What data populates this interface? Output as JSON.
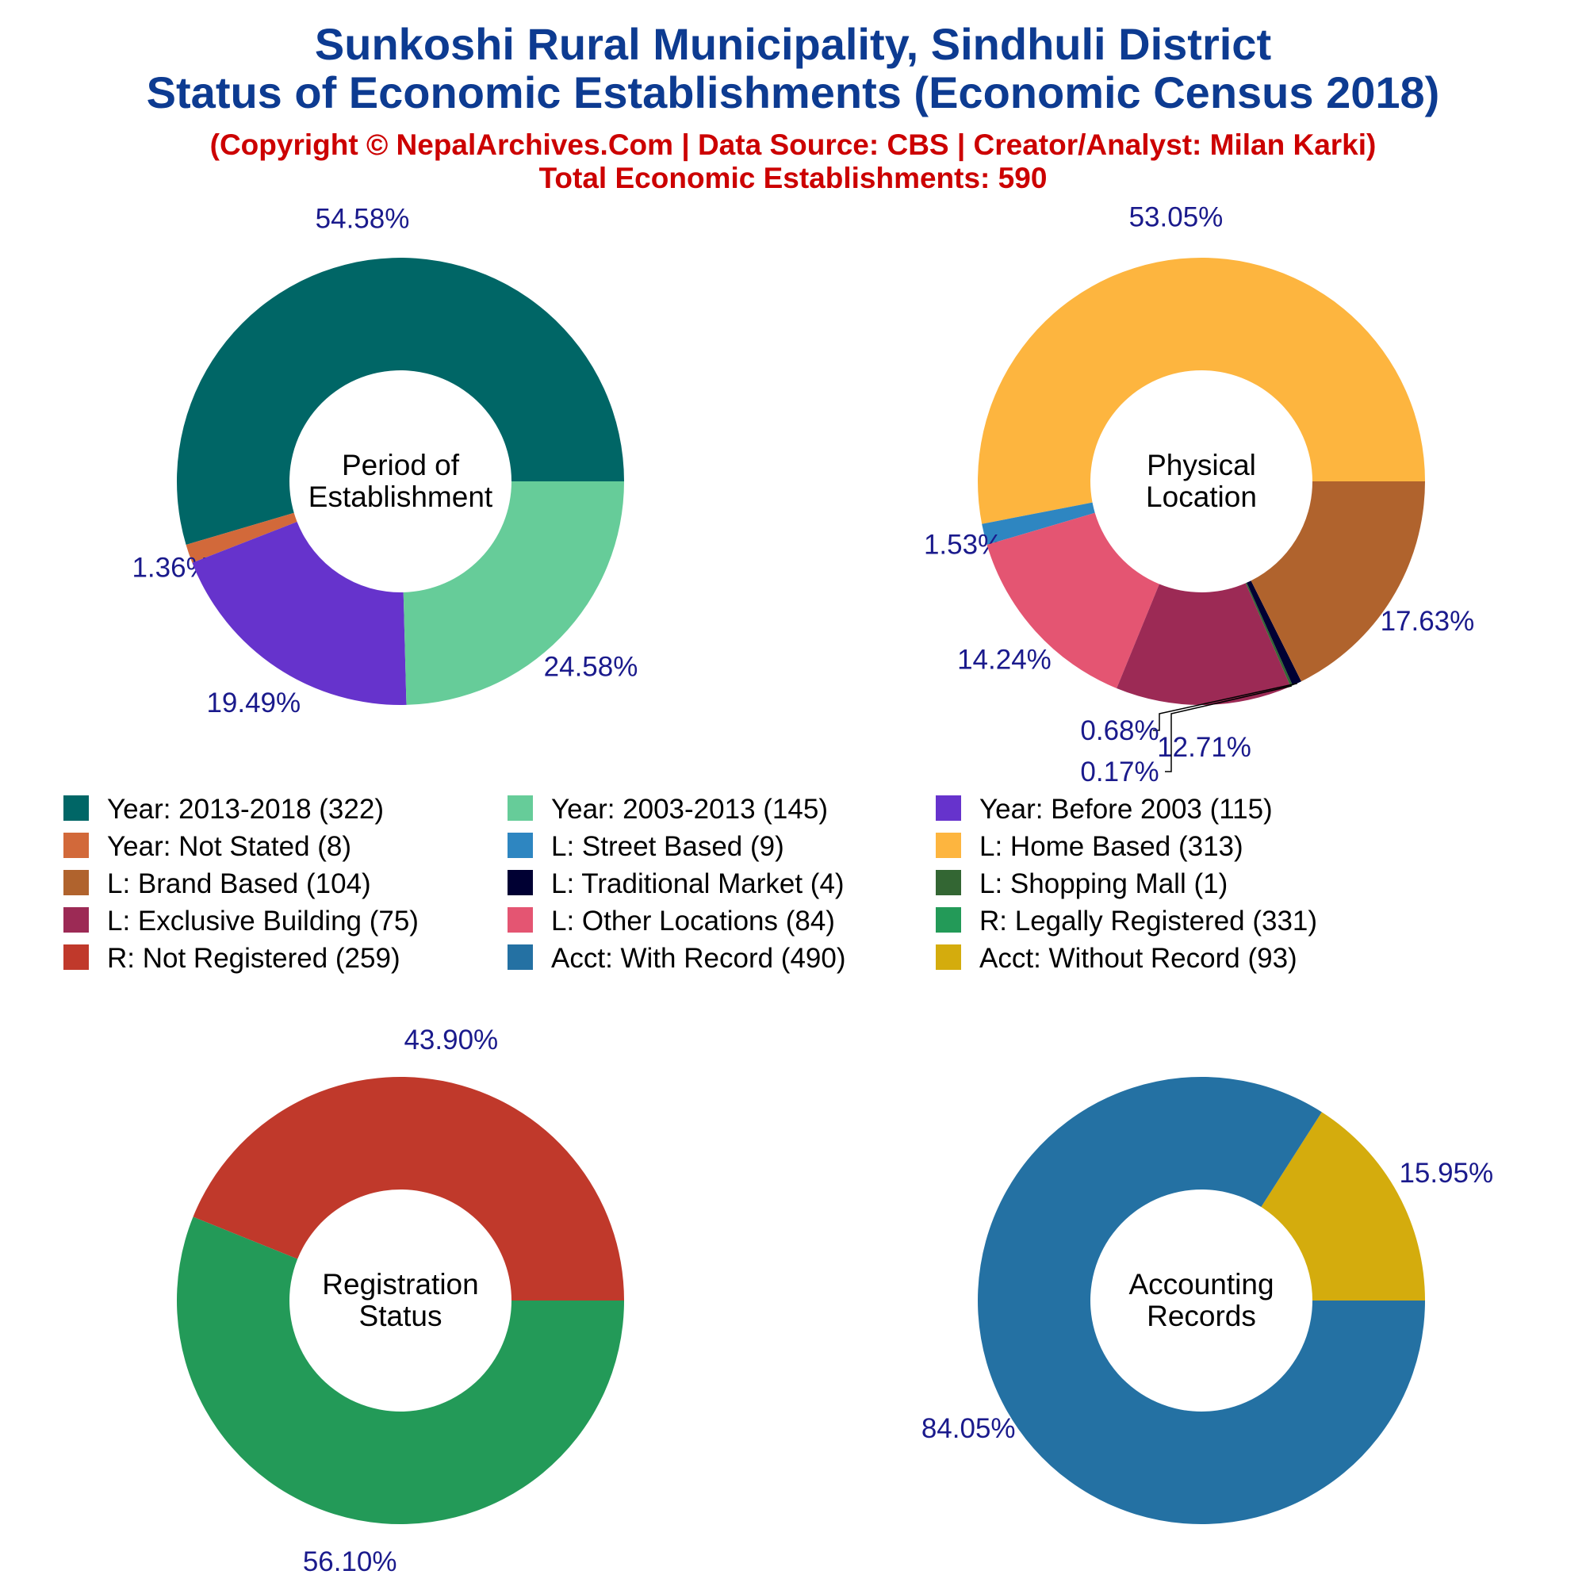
{
  "titles": {
    "line1": "Sunkoshi Rural Municipality, Sindhuli District",
    "line2": "Status of Economic Establishments (Economic Census 2018)",
    "line3": "(Copyright © NepalArchives.Com | Data Source: CBS | Creator/Analyst: Milan Karki)",
    "line4": "Total Economic Establishments: 590"
  },
  "chart_data": [
    {
      "type": "pie",
      "center_label": [
        "Period of",
        "Establishment"
      ],
      "slices": [
        {
          "label": "Year: 2013-2018",
          "value": 322,
          "pct": "54.58%",
          "color": "#006666"
        },
        {
          "label": "Year: Not Stated",
          "value": 8,
          "pct": "1.36%",
          "color": "#d2693a"
        },
        {
          "label": "Year: Before 2003",
          "value": 115,
          "pct": "19.49%",
          "color": "#6633cc"
        },
        {
          "label": "Year: 2003-2013",
          "value": 145,
          "pct": "24.58%",
          "color": "#66cc99"
        }
      ]
    },
    {
      "type": "pie",
      "center_label": [
        "Physical",
        "Location"
      ],
      "slices": [
        {
          "label": "L: Home Based",
          "value": 313,
          "pct": "53.05%",
          "color": "#fdb53f"
        },
        {
          "label": "L: Street Based",
          "value": 9,
          "pct": "1.53%",
          "color": "#2e86c1"
        },
        {
          "label": "L: Other Locations",
          "value": 84,
          "pct": "14.24%",
          "color": "#e45572"
        },
        {
          "label": "L: Exclusive Building",
          "value": 75,
          "pct": "12.71%",
          "color": "#9c2a55"
        },
        {
          "label": "L: Shopping Mall",
          "value": 1,
          "pct": "0.17%",
          "color": "#336633"
        },
        {
          "label": "L: Traditional Market",
          "value": 4,
          "pct": "0.68%",
          "color": "#000033"
        },
        {
          "label": "L: Brand Based",
          "value": 104,
          "pct": "17.63%",
          "color": "#b0632d"
        }
      ]
    },
    {
      "type": "pie",
      "center_label": [
        "Registration",
        "Status"
      ],
      "slices": [
        {
          "label": "R: Not Registered",
          "value": 259,
          "pct": "43.90%",
          "color": "#c0392b"
        },
        {
          "label": "R: Legally Registered",
          "value": 331,
          "pct": "56.10%",
          "color": "#239a58"
        }
      ]
    },
    {
      "type": "pie",
      "center_label": [
        "Accounting",
        "Records"
      ],
      "slices": [
        {
          "label": "Acct: Without Record",
          "value": 93,
          "pct": "15.95%",
          "color": "#d4ac0d"
        },
        {
          "label": "Acct: With Record",
          "value": 490,
          "pct": "84.05%",
          "color": "#2471a3"
        }
      ]
    }
  ],
  "legend": [
    {
      "text": "Year: 2013-2018 (322)",
      "color": "#006666"
    },
    {
      "text": "Year: 2003-2013 (145)",
      "color": "#66cc99"
    },
    {
      "text": "Year: Before 2003 (115)",
      "color": "#6633cc"
    },
    {
      "text": "Year: Not Stated (8)",
      "color": "#d2693a"
    },
    {
      "text": "L: Street Based (9)",
      "color": "#2e86c1"
    },
    {
      "text": "L: Home Based (313)",
      "color": "#fdb53f"
    },
    {
      "text": "L: Brand Based (104)",
      "color": "#b0632d"
    },
    {
      "text": "L: Traditional Market (4)",
      "color": "#000033"
    },
    {
      "text": "L: Shopping Mall (1)",
      "color": "#336633"
    },
    {
      "text": "L: Exclusive Building (75)",
      "color": "#9c2a55"
    },
    {
      "text": "L: Other Locations (84)",
      "color": "#e45572"
    },
    {
      "text": "R: Legally Registered (331)",
      "color": "#239a58"
    },
    {
      "text": "R: Not Registered (259)",
      "color": "#c0392b"
    },
    {
      "text": "Acct: With Record (490)",
      "color": "#2471a3"
    },
    {
      "text": "Acct: Without Record (93)",
      "color": "#d4ac0d"
    }
  ]
}
